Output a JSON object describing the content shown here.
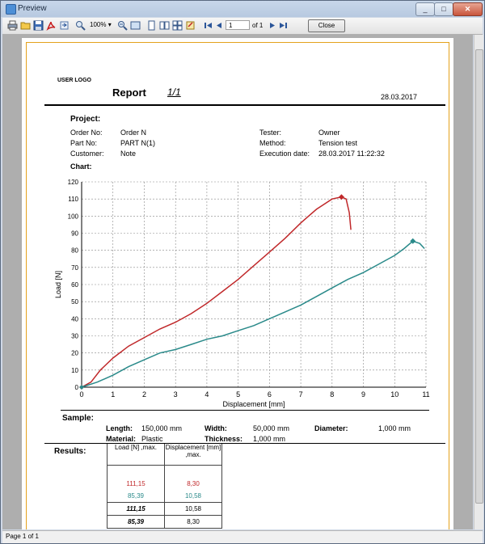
{
  "window": {
    "title": "Preview",
    "minimize_label": "_",
    "maximize_label": "□",
    "close_label": "✕"
  },
  "toolbar": {
    "zoom": "100%",
    "page_current": "1",
    "page_of": "of 1",
    "close_button": "Close",
    "icons": [
      "print-icon",
      "open-icon",
      "save-icon",
      "pdf-icon",
      "export-icon",
      "find-icon",
      "zoom-in-icon",
      "zoom-out-icon",
      "fit-icon",
      "single-page-icon",
      "two-page-icon",
      "multi-page-icon",
      "settings-icon",
      "first-page-icon",
      "prev-page-icon",
      "next-page-icon",
      "last-page-icon"
    ]
  },
  "report": {
    "logo": "USER LOGO",
    "title": "Report",
    "page": "1/1",
    "date": "28.03.2017",
    "project_heading": "Project:",
    "order_no_label": "Order No:",
    "order_no": "Order N",
    "part_no_label": "Part No:",
    "part_no": "PART N(1)",
    "customer_label": "Customer:",
    "customer": "Note",
    "tester_label": "Tester:",
    "tester": "Owner",
    "method_label": "Method:",
    "method": "Tension test",
    "exec_date_label": "Execution date:",
    "exec_date": "28.03.2017  11:22:32",
    "chart_heading": "Chart:",
    "sample_heading": "Sample:",
    "length_label": "Length:",
    "length": "150,000 mm",
    "width_label": "Width:",
    "width": "50,000 mm",
    "diameter_label": "Diameter:",
    "diameter": "1,000 mm",
    "material_label": "Material:",
    "material": "Plastic",
    "thickness_label": "Thickness:",
    "thickness": "1,000 mm",
    "results_heading": "Results:",
    "results_header_load": "Load [N] ,max.",
    "results_header_disp": "Displacement [mm] ,max.",
    "results": [
      {
        "load": "111,15",
        "disp": "8,30",
        "color": "#c0282a",
        "bold": false
      },
      {
        "load": "85,39",
        "disp": "10,58",
        "color": "#2a8a8a",
        "bold": false
      },
      {
        "load": "111,15",
        "disp": "10,58",
        "color": "#000000",
        "bold": true
      },
      {
        "load": "85,39",
        "disp": "8,30",
        "color": "#000000",
        "bold": true
      }
    ]
  },
  "status": {
    "text": "Page 1 of 1"
  },
  "chart_data": {
    "type": "line",
    "xlabel": "Displacement [mm]",
    "ylabel": "Load [N]",
    "xlim": [
      0,
      11
    ],
    "ylim": [
      0,
      120
    ],
    "xticks": [
      0,
      1,
      2,
      3,
      4,
      5,
      6,
      7,
      8,
      9,
      10,
      11
    ],
    "yticks": [
      0,
      10,
      20,
      30,
      40,
      50,
      60,
      70,
      80,
      90,
      100,
      110,
      120
    ],
    "grid": true,
    "series": [
      {
        "color": "#c0282a",
        "x": [
          0,
          0.3,
          0.6,
          1,
          1.5,
          2,
          2.5,
          3,
          3.5,
          4,
          4.5,
          5,
          5.5,
          6,
          6.5,
          7,
          7.5,
          8,
          8.3,
          8.45,
          8.55,
          8.6
        ],
        "y": [
          0,
          3,
          10,
          17,
          24,
          29,
          34,
          38,
          43,
          49,
          56,
          63,
          71,
          79,
          87,
          96,
          104,
          110,
          111.15,
          110,
          102,
          92
        ],
        "marker": {
          "x": 8.3,
          "y": 111.15
        }
      },
      {
        "color": "#2a8a8a",
        "x": [
          0,
          0.5,
          1,
          1.5,
          2,
          2.5,
          3,
          3.5,
          4,
          4.5,
          5,
          5.5,
          6,
          6.5,
          7,
          7.5,
          8,
          8.5,
          9,
          9.5,
          10,
          10.3,
          10.58,
          10.8,
          10.95
        ],
        "y": [
          0,
          3,
          7,
          12,
          16,
          20,
          22,
          25,
          28,
          30,
          33,
          36,
          40,
          44,
          48,
          53,
          58,
          63,
          67,
          72,
          77,
          81,
          85.39,
          84,
          81
        ],
        "marker": {
          "x": 10.58,
          "y": 85.39
        }
      }
    ]
  }
}
